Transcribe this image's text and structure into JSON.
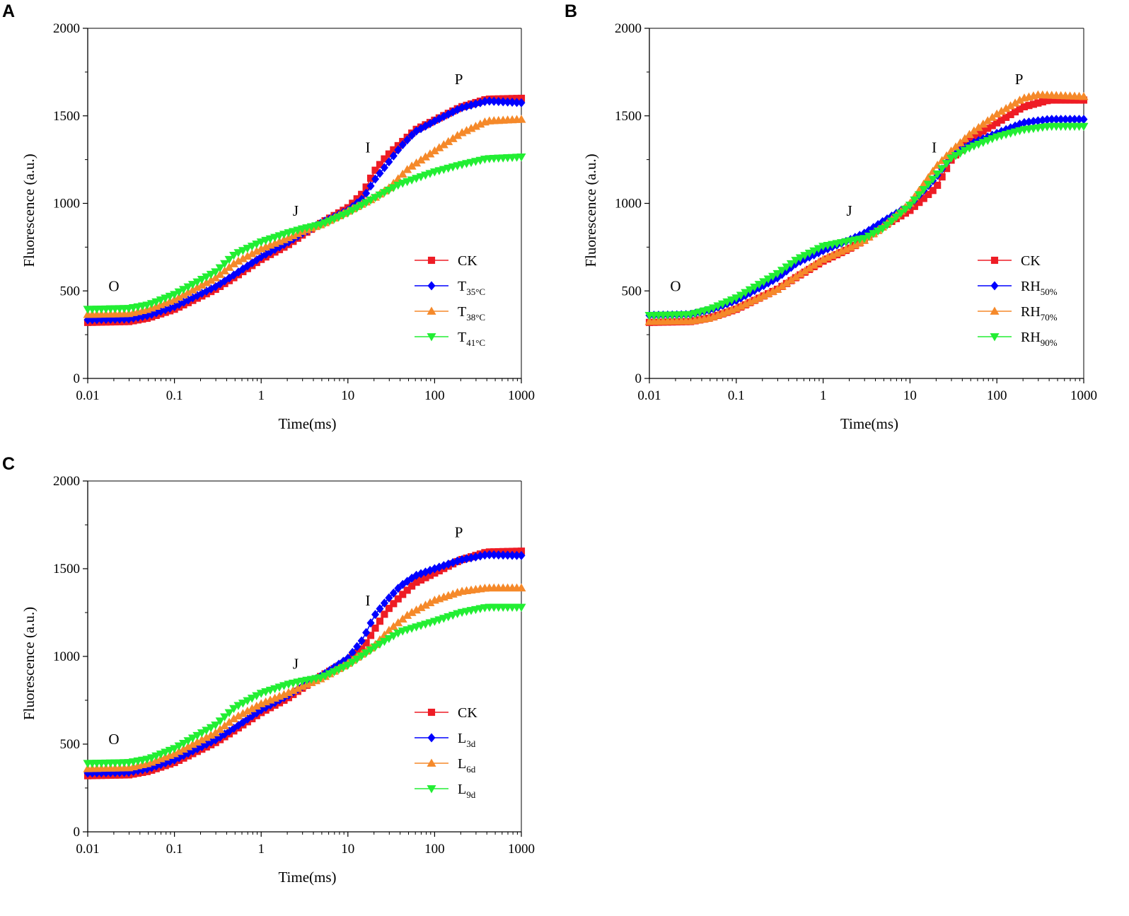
{
  "chart_data": [
    {
      "type": "line",
      "panel": "A",
      "xlabel": "Time(ms)",
      "ylabel": "Fluorescence (a.u.)",
      "xscale": "log",
      "xlim": [
        0.01,
        1000
      ],
      "ylim": [
        0,
        2000
      ],
      "xticks": [
        "0.01",
        "0.1",
        "1",
        "10",
        "100",
        "1000"
      ],
      "yticks": [
        "0",
        "500",
        "1000",
        "1500",
        "2000"
      ],
      "legend_position": "right",
      "phase_labels": [
        {
          "text": "O",
          "x": 0.02,
          "y": 500
        },
        {
          "text": "J",
          "x": 2.5,
          "y": 930
        },
        {
          "text": "I",
          "x": 17,
          "y": 1290
        },
        {
          "text": "P",
          "x": 190,
          "y": 1680
        }
      ],
      "series": [
        {
          "name": "CK",
          "base": "CK",
          "sub": "",
          "color": "#ee1c25",
          "marker": "square",
          "points": [
            [
              0.01,
              320
            ],
            [
              0.03,
              325
            ],
            [
              0.05,
              345
            ],
            [
              0.1,
              395
            ],
            [
              0.3,
              510
            ],
            [
              0.5,
              580
            ],
            [
              1,
              680
            ],
            [
              2,
              760
            ],
            [
              3,
              820
            ],
            [
              5,
              890
            ],
            [
              10,
              975
            ],
            [
              15,
              1060
            ],
            [
              20,
              1180
            ],
            [
              28,
              1270
            ],
            [
              40,
              1340
            ],
            [
              60,
              1420
            ],
            [
              100,
              1475
            ],
            [
              200,
              1550
            ],
            [
              400,
              1595
            ],
            [
              1000,
              1600
            ]
          ]
        },
        {
          "name": "T35°C",
          "base": "T",
          "sub": "35°C",
          "color": "#0000ff",
          "marker": "diamond",
          "points": [
            [
              0.01,
              335
            ],
            [
              0.03,
              340
            ],
            [
              0.05,
              360
            ],
            [
              0.1,
              410
            ],
            [
              0.3,
              525
            ],
            [
              0.5,
              595
            ],
            [
              1,
              695
            ],
            [
              2,
              775
            ],
            [
              3,
              830
            ],
            [
              5,
              890
            ],
            [
              10,
              960
            ],
            [
              15,
              1030
            ],
            [
              20,
              1130
            ],
            [
              28,
              1220
            ],
            [
              40,
              1320
            ],
            [
              60,
              1410
            ],
            [
              100,
              1470
            ],
            [
              200,
              1545
            ],
            [
              400,
              1585
            ],
            [
              1000,
              1575
            ]
          ]
        },
        {
          "name": "T38°C",
          "base": "T",
          "sub": "38°C",
          "color": "#f5892a",
          "marker": "triangle-up",
          "points": [
            [
              0.01,
              365
            ],
            [
              0.03,
              370
            ],
            [
              0.05,
              395
            ],
            [
              0.1,
              450
            ],
            [
              0.3,
              575
            ],
            [
              0.5,
              660
            ],
            [
              1,
              740
            ],
            [
              2,
              800
            ],
            [
              3,
              840
            ],
            [
              5,
              880
            ],
            [
              10,
              955
            ],
            [
              20,
              1030
            ],
            [
              30,
              1090
            ],
            [
              50,
              1200
            ],
            [
              100,
              1300
            ],
            [
              200,
              1400
            ],
            [
              400,
              1470
            ],
            [
              1000,
              1480
            ]
          ]
        },
        {
          "name": "T41°C",
          "base": "T",
          "sub": "41°C",
          "color": "#22ee33",
          "marker": "triangle-down",
          "points": [
            [
              0.01,
              395
            ],
            [
              0.03,
              400
            ],
            [
              0.05,
              420
            ],
            [
              0.1,
              480
            ],
            [
              0.3,
              610
            ],
            [
              0.5,
              710
            ],
            [
              1,
              780
            ],
            [
              2,
              830
            ],
            [
              3,
              855
            ],
            [
              5,
              880
            ],
            [
              10,
              945
            ],
            [
              20,
              1030
            ],
            [
              40,
              1110
            ],
            [
              100,
              1180
            ],
            [
              200,
              1220
            ],
            [
              400,
              1255
            ],
            [
              1000,
              1265
            ]
          ]
        }
      ]
    },
    {
      "type": "line",
      "panel": "B",
      "xlabel": "Time(ms)",
      "ylabel": "Fluorescence (a.u.)",
      "xscale": "log",
      "xlim": [
        0.01,
        1000
      ],
      "ylim": [
        0,
        2000
      ],
      "xticks": [
        "0.01",
        "0.1",
        "1",
        "10",
        "100",
        "1000"
      ],
      "yticks": [
        "0",
        "500",
        "1000",
        "1500",
        "2000"
      ],
      "legend_position": "right",
      "phase_labels": [
        {
          "text": "O",
          "x": 0.02,
          "y": 500
        },
        {
          "text": "J",
          "x": 2,
          "y": 930
        },
        {
          "text": "I",
          "x": 19,
          "y": 1290
        },
        {
          "text": "P",
          "x": 180,
          "y": 1680
        }
      ],
      "series": [
        {
          "name": "CK",
          "base": "CK",
          "sub": "",
          "color": "#ee1c25",
          "marker": "square",
          "points": [
            [
              0.01,
              320
            ],
            [
              0.03,
              325
            ],
            [
              0.05,
              345
            ],
            [
              0.1,
              395
            ],
            [
              0.3,
              510
            ],
            [
              0.5,
              580
            ],
            [
              1,
              670
            ],
            [
              2,
              740
            ],
            [
              3,
              790
            ],
            [
              5,
              870
            ],
            [
              10,
              960
            ],
            [
              20,
              1090
            ],
            [
              30,
              1250
            ],
            [
              50,
              1370
            ],
            [
              100,
              1460
            ],
            [
              200,
              1550
            ],
            [
              400,
              1590
            ],
            [
              1000,
              1590
            ]
          ]
        },
        {
          "name": "RH50%",
          "base": "RH",
          "sub": "50%",
          "color": "#0000ff",
          "marker": "diamond",
          "points": [
            [
              0.01,
              360
            ],
            [
              0.03,
              365
            ],
            [
              0.05,
              390
            ],
            [
              0.1,
              445
            ],
            [
              0.3,
              575
            ],
            [
              0.5,
              660
            ],
            [
              1,
              730
            ],
            [
              2,
              790
            ],
            [
              3,
              830
            ],
            [
              5,
              900
            ],
            [
              10,
              990
            ],
            [
              20,
              1150
            ],
            [
              30,
              1270
            ],
            [
              50,
              1340
            ],
            [
              100,
              1400
            ],
            [
              200,
              1460
            ],
            [
              400,
              1480
            ],
            [
              1000,
              1480
            ]
          ]
        },
        {
          "name": "RH70%",
          "base": "RH",
          "sub": "70%",
          "color": "#f5892a",
          "marker": "triangle-up",
          "points": [
            [
              0.01,
              325
            ],
            [
              0.03,
              328
            ],
            [
              0.05,
              345
            ],
            [
              0.1,
              400
            ],
            [
              0.3,
              510
            ],
            [
              0.5,
              585
            ],
            [
              1,
              680
            ],
            [
              2,
              745
            ],
            [
              3,
              790
            ],
            [
              5,
              870
            ],
            [
              10,
              1000
            ],
            [
              20,
              1210
            ],
            [
              30,
              1300
            ],
            [
              50,
              1400
            ],
            [
              100,
              1510
            ],
            [
              200,
              1600
            ],
            [
              300,
              1620
            ],
            [
              1000,
              1610
            ]
          ]
        },
        {
          "name": "RH90%",
          "base": "RH",
          "sub": "90%",
          "color": "#22ee33",
          "marker": "triangle-down",
          "points": [
            [
              0.01,
              360
            ],
            [
              0.03,
              365
            ],
            [
              0.05,
              395
            ],
            [
              0.1,
              460
            ],
            [
              0.3,
              600
            ],
            [
              0.5,
              680
            ],
            [
              1,
              755
            ],
            [
              2,
              785
            ],
            [
              3,
              800
            ],
            [
              5,
              860
            ],
            [
              10,
              990
            ],
            [
              20,
              1160
            ],
            [
              30,
              1260
            ],
            [
              50,
              1320
            ],
            [
              100,
              1380
            ],
            [
              200,
              1420
            ],
            [
              400,
              1440
            ],
            [
              1000,
              1440
            ]
          ]
        }
      ]
    },
    {
      "type": "line",
      "panel": "C",
      "xlabel": "Time(ms)",
      "ylabel": "Fluorescence (a.u.)",
      "xscale": "log",
      "xlim": [
        0.01,
        1000
      ],
      "ylim": [
        0,
        2000
      ],
      "xticks": [
        "0.01",
        "0.1",
        "1",
        "10",
        "100",
        "1000"
      ],
      "yticks": [
        "0",
        "500",
        "1000",
        "1500",
        "2000"
      ],
      "legend_position": "right",
      "phase_labels": [
        {
          "text": "O",
          "x": 0.02,
          "y": 500
        },
        {
          "text": "J",
          "x": 2.5,
          "y": 930
        },
        {
          "text": "I",
          "x": 17,
          "y": 1290
        },
        {
          "text": "P",
          "x": 190,
          "y": 1680
        }
      ],
      "series": [
        {
          "name": "CK",
          "base": "CK",
          "sub": "",
          "color": "#ee1c25",
          "marker": "square",
          "points": [
            [
              0.01,
              320
            ],
            [
              0.03,
              325
            ],
            [
              0.05,
              345
            ],
            [
              0.1,
              395
            ],
            [
              0.3,
              510
            ],
            [
              0.5,
              580
            ],
            [
              1,
              680
            ],
            [
              2,
              760
            ],
            [
              3,
              820
            ],
            [
              5,
              890
            ],
            [
              10,
              975
            ],
            [
              15,
              1050
            ],
            [
              20,
              1150
            ],
            [
              28,
              1260
            ],
            [
              40,
              1340
            ],
            [
              60,
              1420
            ],
            [
              100,
              1475
            ],
            [
              200,
              1550
            ],
            [
              400,
              1595
            ],
            [
              1000,
              1600
            ]
          ]
        },
        {
          "name": "L3d",
          "base": "L",
          "sub": "3d",
          "color": "#0000ff",
          "marker": "diamond",
          "points": [
            [
              0.01,
              335
            ],
            [
              0.03,
              340
            ],
            [
              0.05,
              360
            ],
            [
              0.1,
              410
            ],
            [
              0.3,
              525
            ],
            [
              0.5,
              595
            ],
            [
              1,
              695
            ],
            [
              2,
              775
            ],
            [
              3,
              830
            ],
            [
              5,
              890
            ],
            [
              10,
              990
            ],
            [
              15,
              1100
            ],
            [
              20,
              1230
            ],
            [
              28,
              1320
            ],
            [
              40,
              1400
            ],
            [
              60,
              1460
            ],
            [
              100,
              1500
            ],
            [
              200,
              1550
            ],
            [
              400,
              1580
            ],
            [
              1000,
              1575
            ]
          ]
        },
        {
          "name": "L6d",
          "base": "L",
          "sub": "6d",
          "color": "#f5892a",
          "marker": "triangle-up",
          "points": [
            [
              0.01,
              360
            ],
            [
              0.03,
              365
            ],
            [
              0.05,
              390
            ],
            [
              0.1,
              445
            ],
            [
              0.3,
              565
            ],
            [
              0.5,
              650
            ],
            [
              1,
              730
            ],
            [
              2,
              790
            ],
            [
              3,
              830
            ],
            [
              5,
              875
            ],
            [
              10,
              960
            ],
            [
              20,
              1060
            ],
            [
              30,
              1150
            ],
            [
              50,
              1240
            ],
            [
              100,
              1320
            ],
            [
              200,
              1370
            ],
            [
              400,
              1390
            ],
            [
              1000,
              1390
            ]
          ]
        },
        {
          "name": "L9d",
          "base": "L",
          "sub": "9d",
          "color": "#22ee33",
          "marker": "triangle-down",
          "points": [
            [
              0.01,
              390
            ],
            [
              0.03,
              395
            ],
            [
              0.05,
              415
            ],
            [
              0.1,
              475
            ],
            [
              0.3,
              610
            ],
            [
              0.5,
              710
            ],
            [
              1,
              790
            ],
            [
              2,
              840
            ],
            [
              3,
              860
            ],
            [
              5,
              880
            ],
            [
              10,
              950
            ],
            [
              20,
              1050
            ],
            [
              40,
              1140
            ],
            [
              100,
              1200
            ],
            [
              200,
              1250
            ],
            [
              400,
              1280
            ],
            [
              1000,
              1280
            ]
          ]
        }
      ]
    }
  ]
}
